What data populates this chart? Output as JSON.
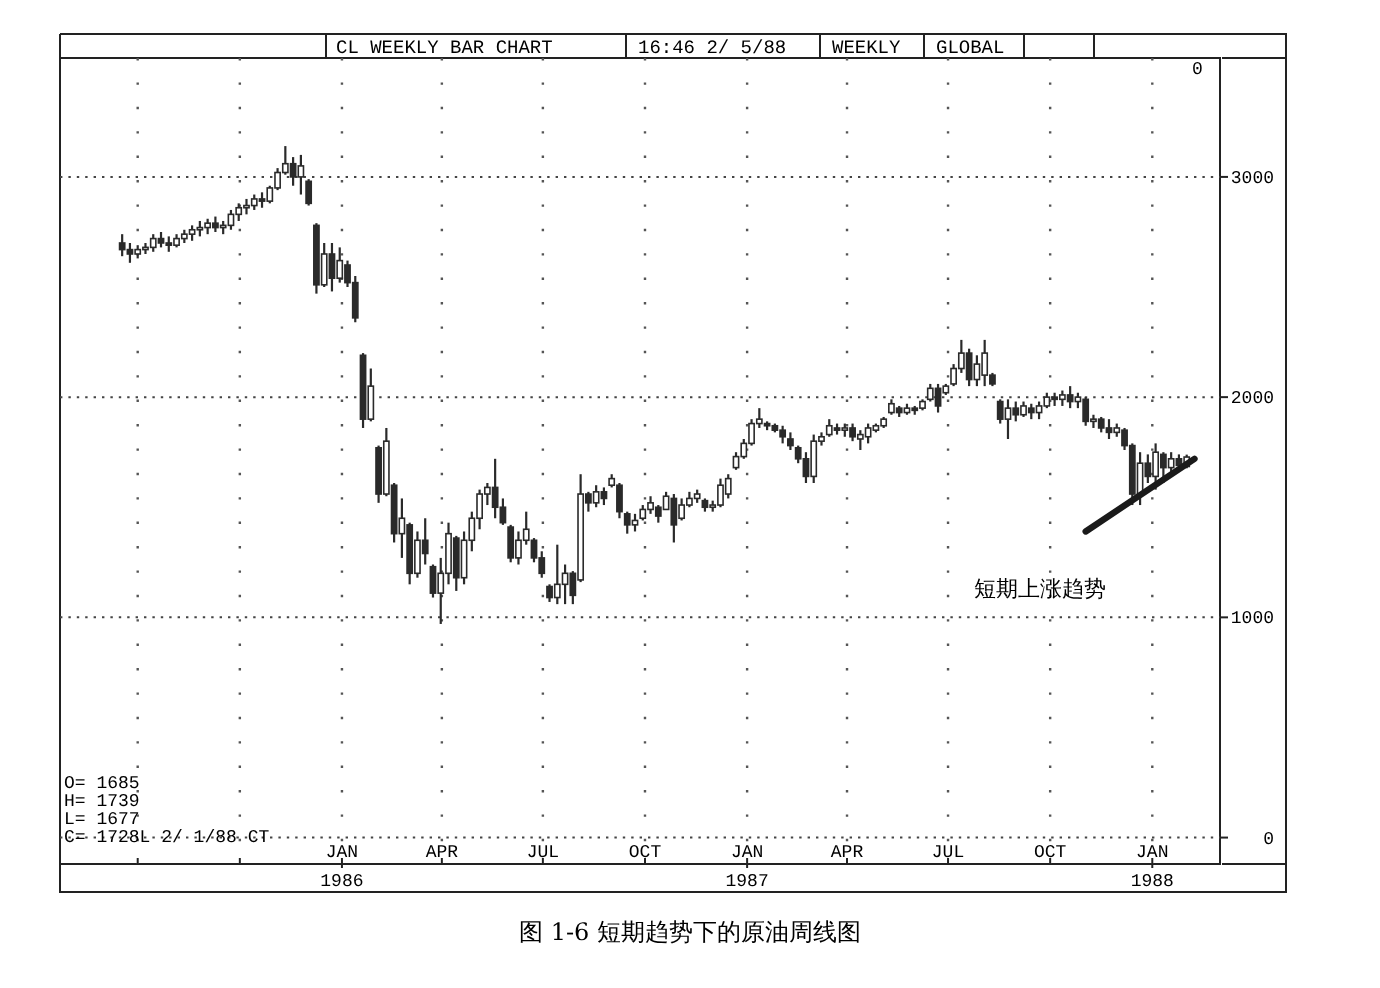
{
  "chart_data": {
    "type": "candlestick",
    "title": "CL WEEKLY BAR CHART",
    "x": [
      "1985-06-17",
      "1985-06-24",
      "1985-07-01",
      "1985-07-08",
      "1985-07-15",
      "1985-07-22",
      "1985-07-29",
      "1985-08-05",
      "1985-08-12",
      "1985-08-19",
      "1985-08-26",
      "1985-09-02",
      "1985-09-09",
      "1985-09-16",
      "1985-09-23",
      "1985-09-30",
      "1985-10-07",
      "1985-10-14",
      "1985-10-21",
      "1985-10-28",
      "1985-11-04",
      "1985-11-11",
      "1985-11-18",
      "1985-11-25",
      "1985-12-02",
      "1985-12-09",
      "1985-12-16",
      "1985-12-23",
      "1985-12-30",
      "1986-01-06",
      "1986-01-13",
      "1986-01-20",
      "1986-01-27",
      "1986-02-03",
      "1986-02-10",
      "1986-02-17",
      "1986-02-24",
      "1986-03-03",
      "1986-03-10",
      "1986-03-17",
      "1986-03-24",
      "1986-03-31",
      "1986-04-07",
      "1986-04-14",
      "1986-04-21",
      "1986-04-28",
      "1986-05-05",
      "1986-05-12",
      "1986-05-19",
      "1986-05-26",
      "1986-06-02",
      "1986-06-09",
      "1986-06-16",
      "1986-06-23",
      "1986-06-30",
      "1986-07-07",
      "1986-07-14",
      "1986-07-21",
      "1986-07-28",
      "1986-08-04",
      "1986-08-11",
      "1986-08-18",
      "1986-08-25",
      "1986-09-01",
      "1986-09-08",
      "1986-09-15",
      "1986-09-22",
      "1986-09-29",
      "1986-10-06",
      "1986-10-13",
      "1986-10-20",
      "1986-10-27",
      "1986-11-03",
      "1986-11-10",
      "1986-11-17",
      "1986-11-24",
      "1986-12-01",
      "1986-12-08",
      "1986-12-15",
      "1986-12-22",
      "1986-12-29",
      "1987-01-05",
      "1987-01-12",
      "1987-01-19",
      "1987-01-26",
      "1987-02-02",
      "1987-02-09",
      "1987-02-16",
      "1987-02-23",
      "1987-03-02",
      "1987-03-09",
      "1987-03-16",
      "1987-03-23",
      "1987-03-30",
      "1987-04-06",
      "1987-04-13",
      "1987-04-20",
      "1987-04-27",
      "1987-05-04",
      "1987-05-11",
      "1987-05-18",
      "1987-05-25",
      "1987-06-01",
      "1987-06-08",
      "1987-06-15",
      "1987-06-22",
      "1987-06-29",
      "1987-07-06",
      "1987-07-13",
      "1987-07-20",
      "1987-07-27",
      "1987-08-03",
      "1987-08-10",
      "1987-08-17",
      "1987-08-24",
      "1987-08-31",
      "1987-09-07",
      "1987-09-14",
      "1987-09-21",
      "1987-09-28",
      "1987-10-05",
      "1987-10-12",
      "1987-10-19",
      "1987-10-26",
      "1987-11-02",
      "1987-11-09",
      "1987-11-16",
      "1987-11-23",
      "1987-11-30",
      "1987-12-07",
      "1987-12-14",
      "1987-12-21",
      "1987-12-28",
      "1988-01-04",
      "1988-01-11",
      "1988-01-18",
      "1988-01-25",
      "1988-02-01"
    ],
    "series": [
      {
        "type": "candlestick",
        "color": "#2a2a2a",
        "ohlc": [
          [
            2700,
            2740,
            2640,
            2670
          ],
          [
            2670,
            2700,
            2610,
            2650
          ],
          [
            2650,
            2690,
            2630,
            2670
          ],
          [
            2670,
            2700,
            2650,
            2680
          ],
          [
            2680,
            2740,
            2660,
            2720
          ],
          [
            2720,
            2750,
            2680,
            2700
          ],
          [
            2700,
            2730,
            2660,
            2690
          ],
          [
            2690,
            2740,
            2680,
            2720
          ],
          [
            2720,
            2760,
            2700,
            2740
          ],
          [
            2740,
            2780,
            2710,
            2760
          ],
          [
            2760,
            2800,
            2730,
            2770
          ],
          [
            2770,
            2810,
            2740,
            2790
          ],
          [
            2790,
            2820,
            2750,
            2770
          ],
          [
            2770,
            2800,
            2740,
            2780
          ],
          [
            2780,
            2850,
            2760,
            2830
          ],
          [
            2830,
            2880,
            2800,
            2860
          ],
          [
            2860,
            2900,
            2830,
            2870
          ],
          [
            2870,
            2920,
            2850,
            2900
          ],
          [
            2900,
            2930,
            2860,
            2890
          ],
          [
            2890,
            2960,
            2880,
            2950
          ],
          [
            2950,
            3040,
            2940,
            3020
          ],
          [
            3020,
            3140,
            3010,
            3060
          ],
          [
            3060,
            3090,
            2960,
            3000
          ],
          [
            3000,
            3100,
            2920,
            3050
          ],
          [
            2980,
            2990,
            2870,
            2880
          ],
          [
            2780,
            2790,
            2470,
            2510
          ],
          [
            2510,
            2700,
            2500,
            2650
          ],
          [
            2650,
            2700,
            2480,
            2540
          ],
          [
            2540,
            2680,
            2520,
            2620
          ],
          [
            2600,
            2620,
            2500,
            2520
          ],
          [
            2520,
            2550,
            2340,
            2360
          ],
          [
            2190,
            2200,
            1860,
            1900
          ],
          [
            1900,
            2130,
            1890,
            2050
          ],
          [
            1770,
            1780,
            1520,
            1560
          ],
          [
            1560,
            1860,
            1550,
            1800
          ],
          [
            1600,
            1610,
            1340,
            1380
          ],
          [
            1380,
            1540,
            1270,
            1450
          ],
          [
            1420,
            1430,
            1150,
            1200
          ],
          [
            1200,
            1390,
            1180,
            1350
          ],
          [
            1350,
            1450,
            1240,
            1290
          ],
          [
            1230,
            1240,
            1090,
            1110
          ],
          [
            1110,
            1270,
            970,
            1200
          ],
          [
            1200,
            1430,
            1150,
            1380
          ],
          [
            1360,
            1370,
            1120,
            1180
          ],
          [
            1180,
            1390,
            1150,
            1350
          ],
          [
            1350,
            1480,
            1300,
            1450
          ],
          [
            1450,
            1580,
            1400,
            1560
          ],
          [
            1560,
            1610,
            1510,
            1590
          ],
          [
            1590,
            1720,
            1450,
            1500
          ],
          [
            1500,
            1540,
            1420,
            1430
          ],
          [
            1410,
            1420,
            1250,
            1270
          ],
          [
            1270,
            1390,
            1240,
            1350
          ],
          [
            1350,
            1480,
            1330,
            1400
          ],
          [
            1350,
            1360,
            1250,
            1270
          ],
          [
            1270,
            1300,
            1180,
            1200
          ],
          [
            1140,
            1150,
            1070,
            1090
          ],
          [
            1090,
            1330,
            1060,
            1150
          ],
          [
            1150,
            1240,
            1060,
            1200
          ],
          [
            1200,
            1210,
            1060,
            1100
          ],
          [
            1170,
            1650,
            1160,
            1560
          ],
          [
            1560,
            1570,
            1480,
            1520
          ],
          [
            1520,
            1600,
            1500,
            1570
          ],
          [
            1570,
            1590,
            1510,
            1540
          ],
          [
            1600,
            1650,
            1590,
            1630
          ],
          [
            1600,
            1610,
            1450,
            1480
          ],
          [
            1470,
            1480,
            1380,
            1420
          ],
          [
            1420,
            1470,
            1390,
            1440
          ],
          [
            1450,
            1510,
            1440,
            1490
          ],
          [
            1490,
            1550,
            1470,
            1520
          ],
          [
            1500,
            1510,
            1430,
            1460
          ],
          [
            1490,
            1570,
            1490,
            1550
          ],
          [
            1540,
            1560,
            1340,
            1420
          ],
          [
            1450,
            1540,
            1440,
            1510
          ],
          [
            1510,
            1570,
            1500,
            1540
          ],
          [
            1540,
            1580,
            1520,
            1560
          ],
          [
            1530,
            1540,
            1480,
            1500
          ],
          [
            1500,
            1530,
            1480,
            1510
          ],
          [
            1510,
            1630,
            1500,
            1600
          ],
          [
            1560,
            1650,
            1540,
            1630
          ],
          [
            1680,
            1750,
            1670,
            1730
          ],
          [
            1730,
            1810,
            1720,
            1790
          ],
          [
            1790,
            1900,
            1780,
            1880
          ],
          [
            1880,
            1950,
            1860,
            1900
          ],
          [
            1880,
            1890,
            1850,
            1870
          ],
          [
            1870,
            1880,
            1840,
            1850
          ],
          [
            1850,
            1870,
            1790,
            1820
          ],
          [
            1810,
            1840,
            1760,
            1780
          ],
          [
            1770,
            1780,
            1700,
            1720
          ],
          [
            1720,
            1750,
            1610,
            1640
          ],
          [
            1640,
            1830,
            1610,
            1800
          ],
          [
            1800,
            1840,
            1780,
            1820
          ],
          [
            1830,
            1900,
            1820,
            1870
          ],
          [
            1860,
            1880,
            1830,
            1850
          ],
          [
            1850,
            1880,
            1820,
            1860
          ],
          [
            1860,
            1880,
            1800,
            1820
          ],
          [
            1810,
            1850,
            1760,
            1830
          ],
          [
            1820,
            1880,
            1790,
            1860
          ],
          [
            1850,
            1880,
            1840,
            1870
          ],
          [
            1870,
            1910,
            1860,
            1900
          ],
          [
            1930,
            1990,
            1920,
            1970
          ],
          [
            1950,
            1960,
            1910,
            1930
          ],
          [
            1930,
            1970,
            1920,
            1950
          ],
          [
            1950,
            1960,
            1920,
            1940
          ],
          [
            1950,
            1990,
            1940,
            1980
          ],
          [
            1990,
            2060,
            1980,
            2040
          ],
          [
            2040,
            2060,
            1930,
            1960
          ],
          [
            2020,
            2060,
            2010,
            2050
          ],
          [
            2060,
            2150,
            2050,
            2130
          ],
          [
            2130,
            2260,
            2110,
            2200
          ],
          [
            2200,
            2220,
            2050,
            2080
          ],
          [
            2080,
            2190,
            2050,
            2150
          ],
          [
            2100,
            2260,
            2050,
            2200
          ],
          [
            2100,
            2110,
            2050,
            2060
          ],
          [
            1980,
            1990,
            1880,
            1900
          ],
          [
            1900,
            1990,
            1810,
            1950
          ],
          [
            1950,
            1980,
            1890,
            1920
          ],
          [
            1920,
            1980,
            1910,
            1960
          ],
          [
            1950,
            1970,
            1900,
            1930
          ],
          [
            1930,
            1980,
            1900,
            1960
          ],
          [
            1960,
            2020,
            1950,
            2000
          ],
          [
            2000,
            2020,
            1960,
            1990
          ],
          [
            1990,
            2030,
            1960,
            2010
          ],
          [
            2010,
            2050,
            1950,
            1980
          ],
          [
            1980,
            2020,
            1950,
            2000
          ],
          [
            1990,
            2000,
            1870,
            1890
          ],
          [
            1890,
            1920,
            1860,
            1900
          ],
          [
            1900,
            1910,
            1840,
            1860
          ],
          [
            1860,
            1900,
            1810,
            1840
          ],
          [
            1840,
            1880,
            1820,
            1860
          ],
          [
            1850,
            1860,
            1760,
            1780
          ],
          [
            1780,
            1790,
            1510,
            1560
          ],
          [
            1560,
            1750,
            1510,
            1700
          ],
          [
            1700,
            1740,
            1610,
            1640
          ],
          [
            1640,
            1790,
            1580,
            1750
          ],
          [
            1740,
            1750,
            1610,
            1680
          ],
          [
            1680,
            1750,
            1660,
            1720
          ],
          [
            1720,
            1740,
            1660,
            1690
          ],
          [
            1685,
            1739,
            1677,
            1728
          ]
        ]
      },
      {
        "type": "line",
        "color": "#1a1a1a",
        "x": [
          "1987-11-02",
          "1988-02-08"
        ],
        "values": [
          1390,
          1720
        ]
      }
    ],
    "xlim": [
      "1985-04-22",
      "1988-03-02"
    ],
    "xticks": [
      {
        "value": "1985-07-01",
        "label": null
      },
      {
        "value": "1985-10-01",
        "label": null
      },
      {
        "value": "1986-01-01",
        "label": "JAN"
      },
      {
        "value": "1986-04-01",
        "label": "APR"
      },
      {
        "value": "1986-07-01",
        "label": "JUL"
      },
      {
        "value": "1986-10-01",
        "label": "OCT"
      },
      {
        "value": "1987-01-01",
        "label": "JAN"
      },
      {
        "value": "1987-04-01",
        "label": "APR"
      },
      {
        "value": "1987-07-01",
        "label": "JUL"
      },
      {
        "value": "1987-10-01",
        "label": "OCT"
      },
      {
        "value": "1988-01-01",
        "label": "JAN"
      }
    ],
    "x2lim": [
      "1985-04-22",
      "1988-03-02"
    ],
    "x2ticks": [
      {
        "value": "1986-01-01",
        "label": "1986"
      },
      {
        "value": "1987-01-01",
        "label": "1987"
      },
      {
        "value": "1988-01-01",
        "label": "1988"
      }
    ],
    "ylim": [
      -120,
      3540
    ],
    "yticks": [
      0,
      1000,
      2000,
      3000
    ],
    "grid": true,
    "annotations": [
      "16:46  2/ 5/88",
      "WEEKLY",
      "GLOBAL",
      "0",
      "O= 1685",
      "H= 1739",
      "L= 1677",
      "C= 1728L 2/ 1/88 CT",
      "短期上涨趋势",
      "图 1-6   短期趋势下的原油周线图"
    ]
  }
}
